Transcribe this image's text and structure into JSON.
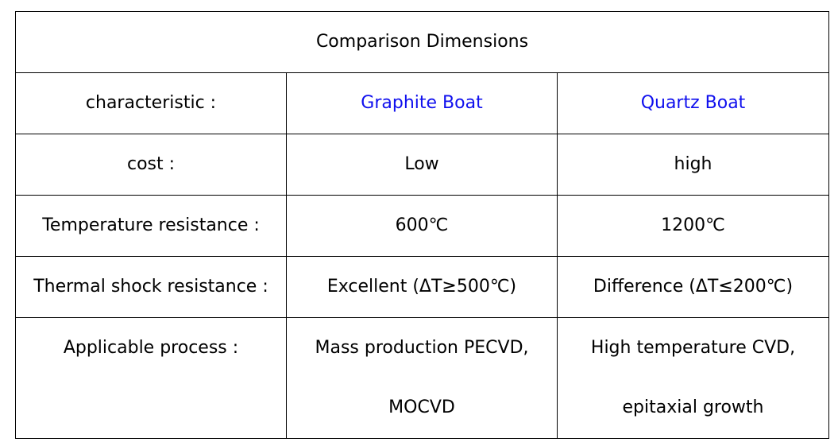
{
  "table": {
    "title": "Comparison Dimensions",
    "header": [
      "characteristic :",
      "Graphite Boat",
      "Quartz Boat"
    ],
    "rows": [
      [
        "cost :",
        "Low",
        "high"
      ],
      [
        "Temperature resistance :",
        "600℃",
        "1200℃"
      ],
      [
        "Thermal shock resistance :",
        "Excellent (ΔT≥500℃)",
        "Difference (ΔT≤200℃)"
      ]
    ],
    "last_row": {
      "label": "Applicable process :",
      "graphite": [
        "Mass production PECVD,",
        "MOCVD"
      ],
      "quartz": [
        "High temperature CVD,",
        "epitaxial growth"
      ]
    },
    "accent_color": "#1010ee"
  }
}
